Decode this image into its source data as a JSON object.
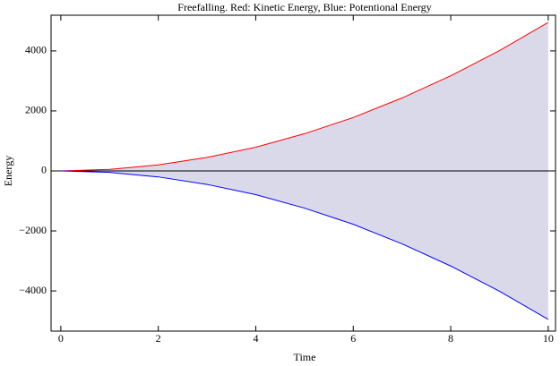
{
  "chart_data": {
    "type": "line",
    "title": "Freefalling. Red: Kinetic Energy, Blue: Potentional Energy",
    "x_label": "Time",
    "y_label": "Energy",
    "x": [
      0,
      1,
      2,
      3,
      4,
      5,
      6,
      7,
      8,
      9,
      10
    ],
    "series": [
      {
        "name": "Kinetic Energy",
        "color": "#ff0000",
        "values": [
          0,
          50,
          200,
          450,
          790,
          1240,
          1780,
          2430,
          3170,
          4010,
          4950
        ]
      },
      {
        "name": "Potentional Energy",
        "color": "#0000ff",
        "values": [
          0,
          -50,
          -200,
          -450,
          -790,
          -1240,
          -1780,
          -2430,
          -3170,
          -4010,
          -4950
        ]
      }
    ],
    "fill_color": "#d9d9ea",
    "xlim": [
      -0.2,
      10.15
    ],
    "ylim": [
      -5340,
      5190
    ],
    "xticks": [
      0,
      2,
      4,
      6,
      8,
      10
    ],
    "yticks": [
      {
        "value": -4000,
        "label": "−4000"
      },
      {
        "value": -2000,
        "label": "−2000"
      },
      0,
      2000,
      4000
    ]
  }
}
